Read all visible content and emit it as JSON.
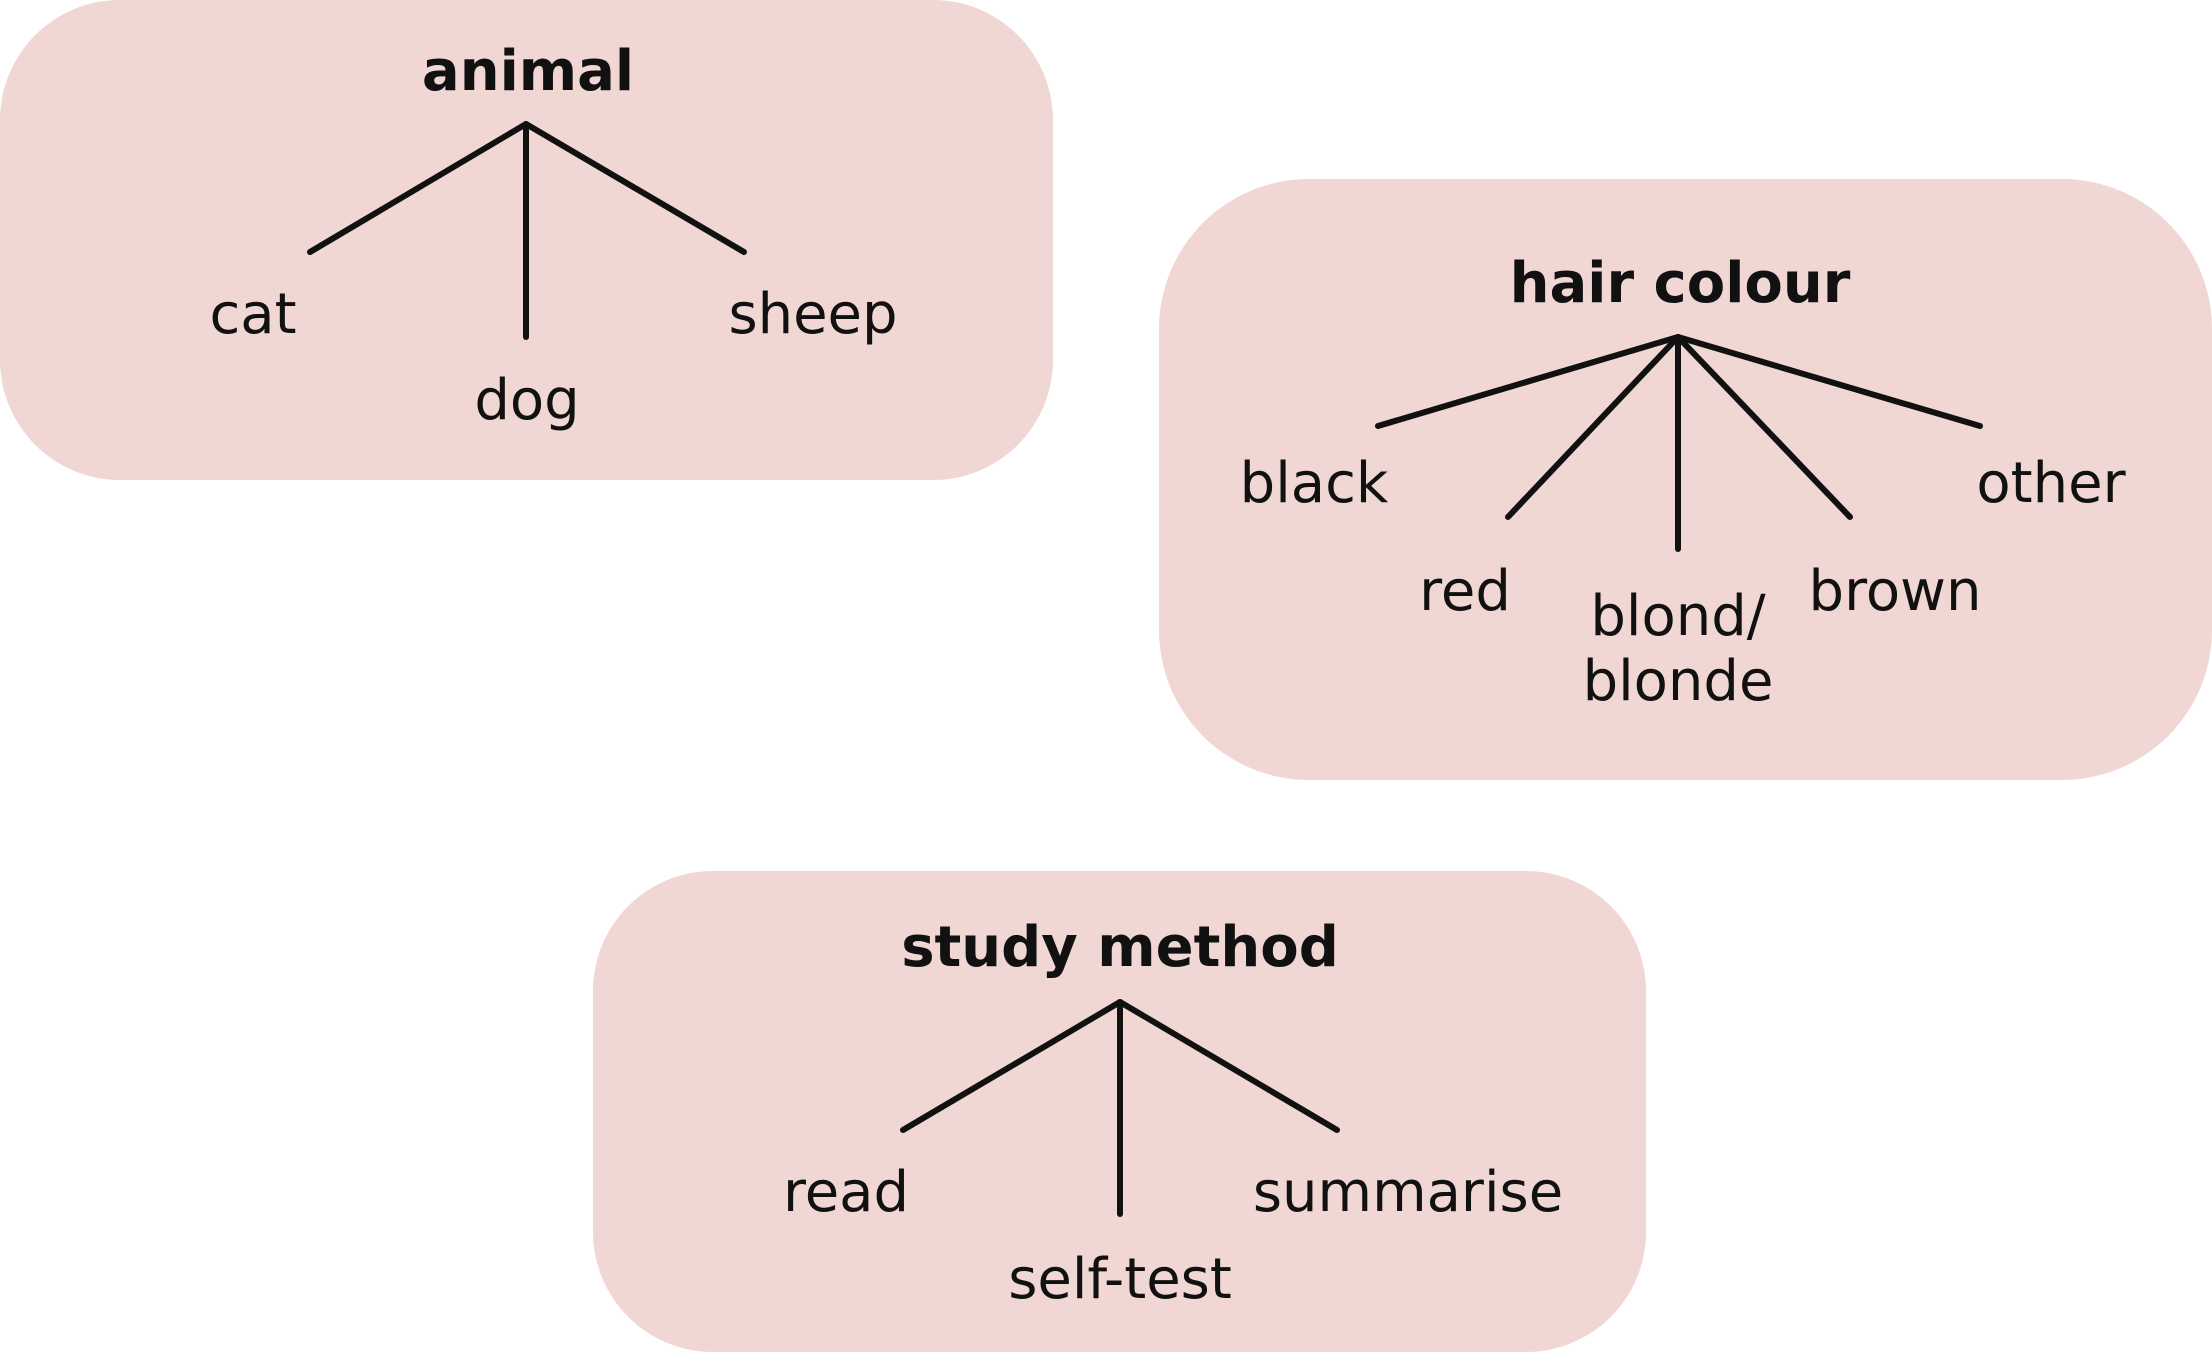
{
  "colors": {
    "box_fill": "#f0d7d4",
    "line": "#111111",
    "text": "#111111"
  },
  "trees": {
    "animal": {
      "title": "animal",
      "leaves": [
        "cat",
        "dog",
        "sheep"
      ]
    },
    "hair": {
      "title": "hair colour",
      "leaves": [
        "black",
        "red",
        "blond/",
        "blonde",
        "brown",
        "other"
      ]
    },
    "study": {
      "title": "study method",
      "leaves": [
        "read",
        "self-test",
        "summarise"
      ]
    }
  }
}
